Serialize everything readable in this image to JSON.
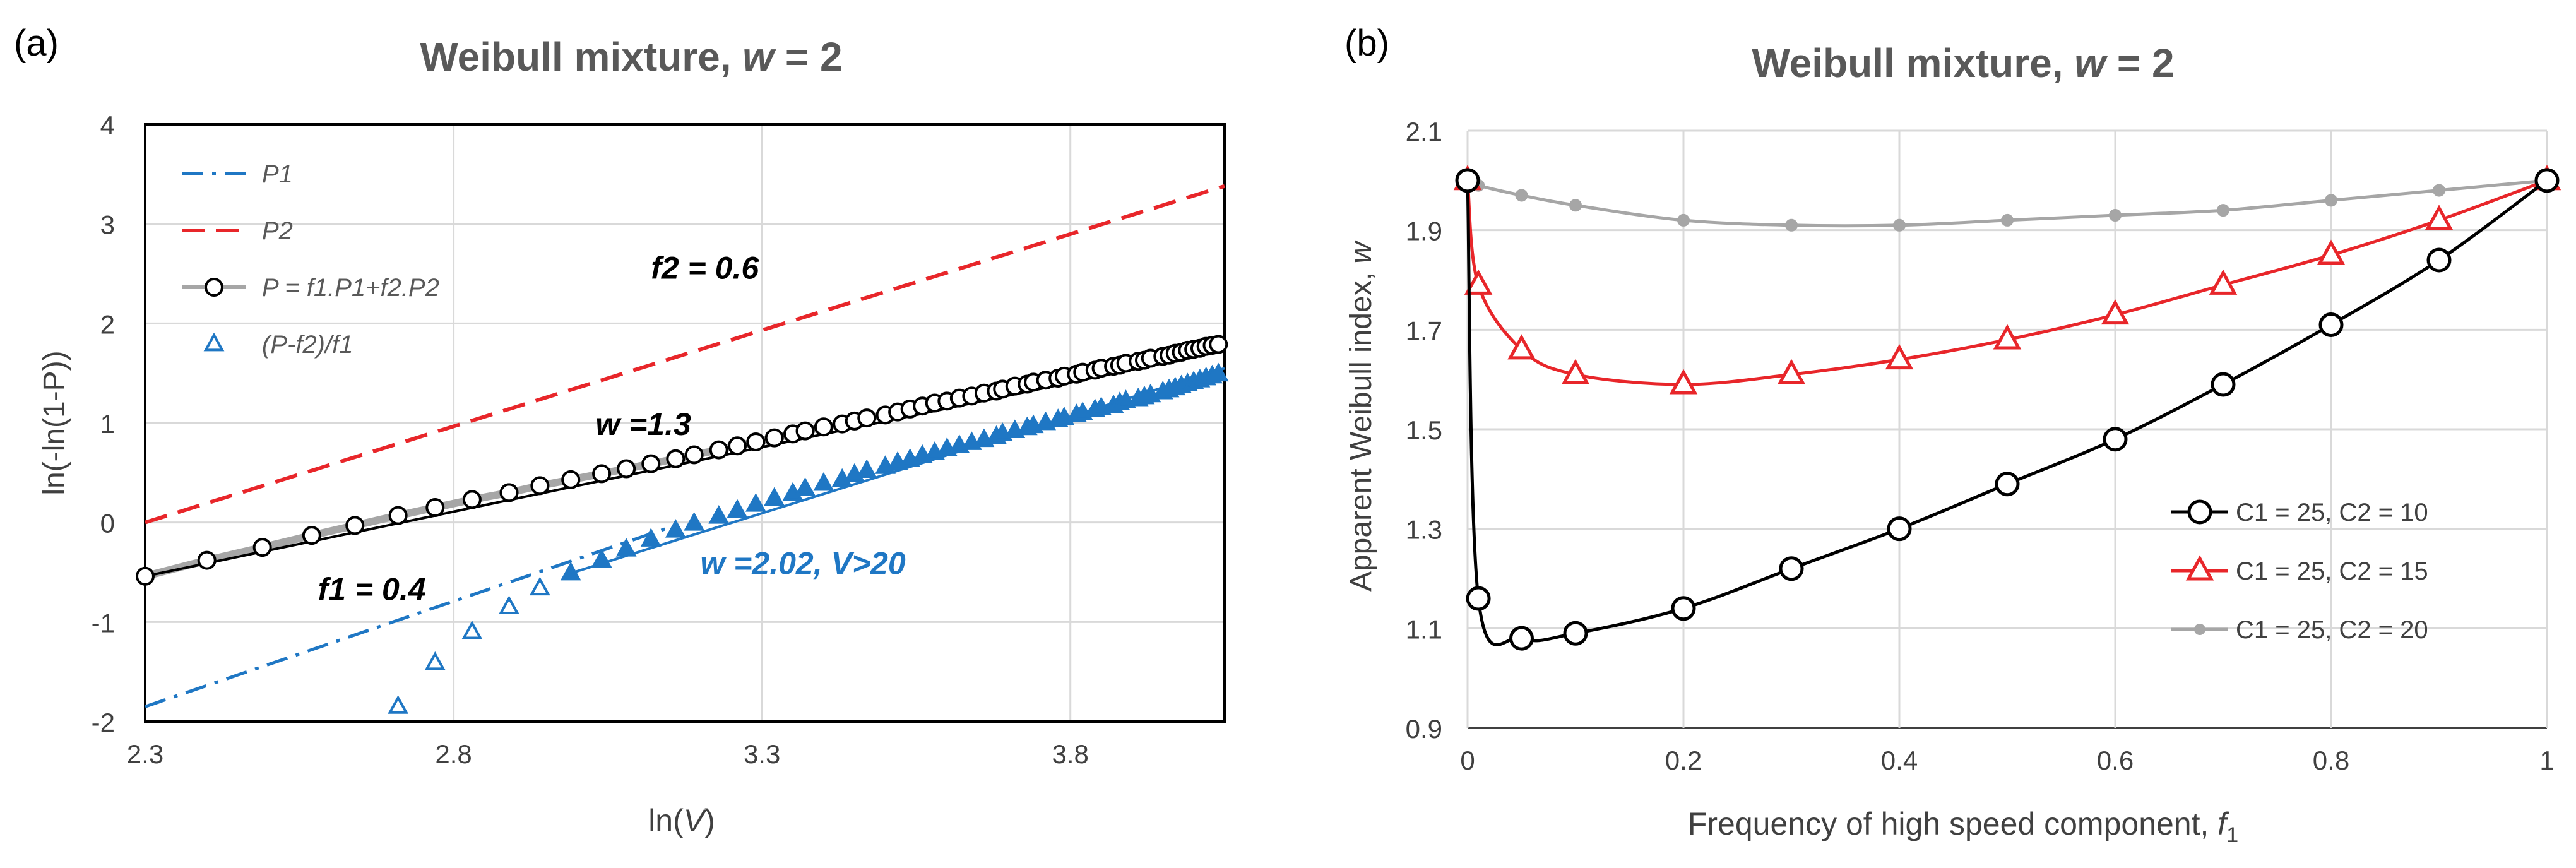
{
  "panels": [
    {
      "label": "(a)"
    },
    {
      "label": "(b)"
    }
  ],
  "chart_data": [
    {
      "type": "line",
      "title": {
        "main": "Weibull mixture, ",
        "var": "w",
        "rest": " = 2"
      },
      "xlabel": {
        "pre": "ln(",
        "var": "V",
        "post": ")"
      },
      "ylabel": "ln(-ln(1-P))",
      "xlim": [
        2.3,
        4.05
      ],
      "ylim": [
        -2,
        4
      ],
      "xticks": [
        2.3,
        2.8,
        3.3,
        3.8
      ],
      "yticks": [
        -2,
        -1,
        0,
        1,
        2,
        3,
        4
      ],
      "grid": true,
      "legend_position": "top-left",
      "series": [
        {
          "name": "P1",
          "style": "dash-dot",
          "color": "#1f77c4",
          "x": [
            2.3,
            3.15
          ],
          "y": [
            -1.85,
            -0.05
          ]
        },
        {
          "name": "P2",
          "style": "dashed",
          "color": "#e8262a",
          "x": [
            2.3,
            4.05
          ],
          "y": [
            0.0,
            3.38
          ]
        },
        {
          "name": "P = f1.P1+f2.P2",
          "style": "line-open-circle",
          "color": "#000000",
          "line_color": "#a6a6a6",
          "x": [
            2.3,
            2.4,
            2.49,
            2.57,
            2.64,
            2.71,
            2.77,
            2.83,
            2.89,
            2.94,
            2.99,
            3.04,
            3.08,
            3.12,
            3.16,
            3.19,
            3.23,
            3.26,
            3.29,
            3.32,
            3.35,
            3.37,
            3.4,
            3.43,
            3.45,
            3.47,
            3.5,
            3.52,
            3.54,
            3.56,
            3.58,
            3.6,
            3.62,
            3.64,
            3.66,
            3.68,
            3.69,
            3.71,
            3.73,
            3.74,
            3.76,
            3.78,
            3.79,
            3.81,
            3.82,
            3.84,
            3.85,
            3.87,
            3.88,
            3.89,
            3.91,
            3.92,
            3.93,
            3.95,
            3.96,
            3.97,
            3.98,
            3.99,
            4.0,
            4.01,
            4.02,
            4.03,
            4.04
          ],
          "y": [
            -0.54,
            -0.38,
            -0.25,
            -0.13,
            -0.03,
            0.07,
            0.15,
            0.23,
            0.3,
            0.37,
            0.43,
            0.49,
            0.54,
            0.59,
            0.64,
            0.68,
            0.73,
            0.77,
            0.81,
            0.85,
            0.89,
            0.92,
            0.96,
            0.99,
            1.02,
            1.05,
            1.08,
            1.11,
            1.14,
            1.17,
            1.2,
            1.22,
            1.25,
            1.27,
            1.3,
            1.32,
            1.34,
            1.37,
            1.39,
            1.41,
            1.43,
            1.45,
            1.47,
            1.49,
            1.51,
            1.53,
            1.55,
            1.57,
            1.58,
            1.6,
            1.62,
            1.63,
            1.65,
            1.67,
            1.68,
            1.7,
            1.71,
            1.73,
            1.74,
            1.75,
            1.77,
            1.78,
            1.79
          ]
        },
        {
          "name": "P fit (w = 1.3)",
          "style": "solid",
          "color": "#000000",
          "in_legend": false,
          "x": [
            2.3,
            4.05
          ],
          "y": [
            -0.54,
            1.73
          ]
        },
        {
          "name": "(P-f2)/f1",
          "style": "triangle",
          "color": "#1f77c4",
          "x": [
            2.71,
            2.77,
            2.83,
            2.89,
            2.94,
            2.99,
            3.04,
            3.08,
            3.12,
            3.16,
            3.19,
            3.23,
            3.26,
            3.29,
            3.32,
            3.35,
            3.37,
            3.4,
            3.43,
            3.45,
            3.47,
            3.5,
            3.52,
            3.54,
            3.56,
            3.58,
            3.6,
            3.62,
            3.64,
            3.66,
            3.68,
            3.69,
            3.71,
            3.73,
            3.74,
            3.76,
            3.78,
            3.79,
            3.81,
            3.82,
            3.84,
            3.85,
            3.87,
            3.88,
            3.89,
            3.91,
            3.92,
            3.93,
            3.95,
            3.96,
            3.97,
            3.98,
            3.99,
            4.0,
            4.01,
            4.02,
            4.03,
            4.04
          ],
          "y": [
            -1.85,
            -1.41,
            -1.1,
            -0.85,
            -0.66,
            -0.51,
            -0.38,
            -0.27,
            -0.17,
            -0.08,
            -0.01,
            0.06,
            0.12,
            0.18,
            0.24,
            0.29,
            0.34,
            0.39,
            0.43,
            0.48,
            0.52,
            0.56,
            0.6,
            0.63,
            0.67,
            0.7,
            0.74,
            0.77,
            0.8,
            0.83,
            0.86,
            0.89,
            0.92,
            0.95,
            0.97,
            1.0,
            1.03,
            1.05,
            1.08,
            1.1,
            1.13,
            1.15,
            1.17,
            1.2,
            1.22,
            1.24,
            1.26,
            1.28,
            1.31,
            1.33,
            1.35,
            1.37,
            1.39,
            1.41,
            1.43,
            1.45,
            1.47,
            1.49
          ],
          "filled_from_x": 2.99
        },
        {
          "name": "fit (w = 2.02)",
          "style": "solid",
          "color": "#1f77c4",
          "in_legend": false,
          "x": [
            2.99,
            4.05
          ],
          "y": [
            -0.51,
            1.55
          ]
        }
      ],
      "annotations": [
        {
          "text": "f2 = 0.6",
          "x": 3.12,
          "y": 2.45,
          "color": "#000000",
          "bold": true,
          "italic": true
        },
        {
          "text": "w =1.3",
          "x": 3.03,
          "y": 0.88,
          "color": "#000000",
          "bold": true,
          "italic": true
        },
        {
          "text": "f1 = 0.4",
          "x": 2.58,
          "y": -0.78,
          "color": "#000000",
          "bold": true,
          "italic": true
        },
        {
          "text": "w =2.02, V>20",
          "x": 3.2,
          "y": -0.52,
          "color": "#1f77c4",
          "bold": true,
          "italic": true
        }
      ]
    },
    {
      "type": "line",
      "title": {
        "main": "Weibull mixture, ",
        "var": "w",
        "rest": " = 2"
      },
      "xlabel": {
        "pre": "Frequency of high speed component, ",
        "var": "f",
        "sub": "1"
      },
      "ylabel": {
        "pre": "Apparent Weibull index, ",
        "var": "w"
      },
      "xlim": [
        0,
        1
      ],
      "ylim": [
        0.9,
        2.1
      ],
      "xticks": [
        0,
        0.2,
        0.4,
        0.6,
        0.8,
        1
      ],
      "yticks": [
        0.9,
        1.1,
        1.3,
        1.5,
        1.7,
        1.9,
        2.1
      ],
      "grid": true,
      "legend_position": "bottom-right",
      "series": [
        {
          "name": "C1 = 25, C2 = 10",
          "marker": "open-circle",
          "color": "#000000",
          "x": [
            0,
            0.01,
            0.05,
            0.1,
            0.2,
            0.3,
            0.4,
            0.5,
            0.6,
            0.7,
            0.8,
            0.9,
            1
          ],
          "y": [
            2.0,
            1.16,
            1.08,
            1.09,
            1.14,
            1.22,
            1.3,
            1.39,
            1.48,
            1.59,
            1.71,
            1.84,
            2.0
          ]
        },
        {
          "name": "C1 = 25, C2 = 15",
          "marker": "open-triangle",
          "color": "#e8262a",
          "x": [
            0,
            0.01,
            0.05,
            0.1,
            0.2,
            0.3,
            0.4,
            0.5,
            0.6,
            0.7,
            0.8,
            0.9,
            1
          ],
          "y": [
            2.0,
            1.79,
            1.66,
            1.61,
            1.59,
            1.61,
            1.64,
            1.68,
            1.73,
            1.79,
            1.85,
            1.92,
            2.0
          ]
        },
        {
          "name": "C1 = 25, C2 = 20",
          "marker": "filled-circle",
          "color": "#a6a6a6",
          "x": [
            0,
            0.01,
            0.05,
            0.1,
            0.2,
            0.3,
            0.4,
            0.5,
            0.6,
            0.7,
            0.8,
            0.9,
            1
          ],
          "y": [
            2.0,
            1.99,
            1.97,
            1.95,
            1.92,
            1.91,
            1.91,
            1.92,
            1.93,
            1.94,
            1.96,
            1.98,
            2.0
          ]
        }
      ]
    }
  ]
}
